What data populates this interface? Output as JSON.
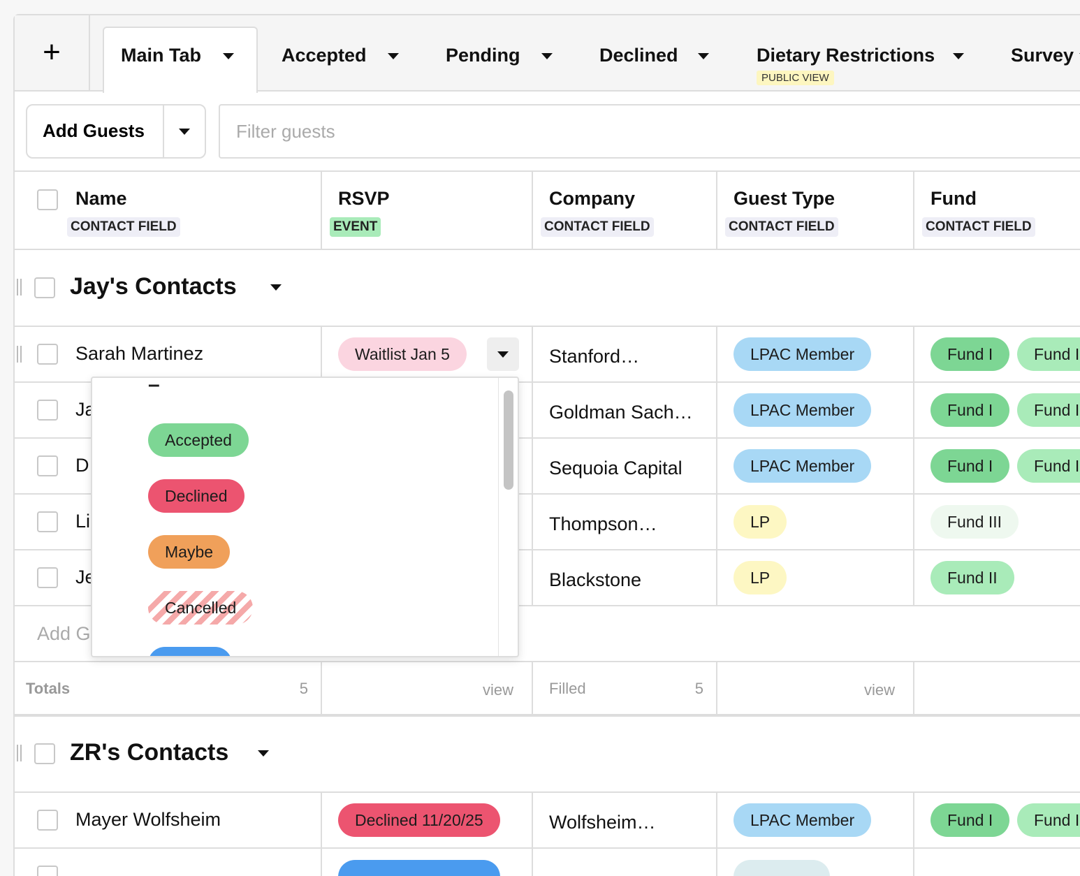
{
  "add_tab": "+",
  "tabs": [
    {
      "label": "Main Tab"
    },
    {
      "label": "Accepted"
    },
    {
      "label": "Pending"
    },
    {
      "label": "Declined"
    },
    {
      "label": "Dietary Restrictions",
      "badge": "PUBLIC VIEW"
    },
    {
      "label": "Survey"
    }
  ],
  "toolbar": {
    "add_button": "Add Guests",
    "filter_placeholder": "Filter guests"
  },
  "columns": [
    {
      "title": "Name",
      "tag": "CONTACT FIELD"
    },
    {
      "title": "RSVP",
      "tag": "EVENT"
    },
    {
      "title": "Company",
      "tag": "CONTACT FIELD"
    },
    {
      "title": "Guest Type",
      "tag": "CONTACT FIELD"
    },
    {
      "title": "Fund",
      "tag": "CONTACT FIELD"
    }
  ],
  "groups": [
    {
      "title": "Jay's Contacts",
      "rows": [
        {
          "name": "Sarah Martinez",
          "rsvp": "Waitlist Jan 5",
          "company": "Stanford…",
          "guest_type": "LPAC Member",
          "funds": [
            "Fund I",
            "Fund II"
          ]
        },
        {
          "name": "Ja",
          "company": "Goldman Sach…",
          "guest_type": "LPAC Member",
          "funds": [
            "Fund I",
            "Fund II"
          ]
        },
        {
          "name": "D",
          "company": "Sequoia Capital",
          "guest_type": "LPAC Member",
          "funds": [
            "Fund I",
            "Fund II"
          ]
        },
        {
          "name": "Li",
          "company": "Thompson…",
          "guest_type": "LP",
          "funds": [
            "Fund III"
          ]
        },
        {
          "name": "Je",
          "company": "Blackstone",
          "guest_type": "LP",
          "funds": [
            "Fund II"
          ]
        }
      ],
      "add_row": "Add G",
      "totals": {
        "label": "Totals",
        "count": 5,
        "rsvp": "view",
        "company_label": "Filled",
        "company_count": 5,
        "guest_type": "view"
      }
    },
    {
      "title": "ZR's Contacts",
      "rows": [
        {
          "name": "Mayer Wolfsheim",
          "rsvp": "Declined 11/20/25",
          "company": "Wolfsheim…",
          "guest_type": "LPAC Member",
          "funds": [
            "Fund I",
            "Fund II"
          ]
        }
      ]
    }
  ],
  "dropdown": {
    "options": [
      "–",
      "Accepted",
      "Declined",
      "Maybe",
      "Cancelled"
    ]
  }
}
